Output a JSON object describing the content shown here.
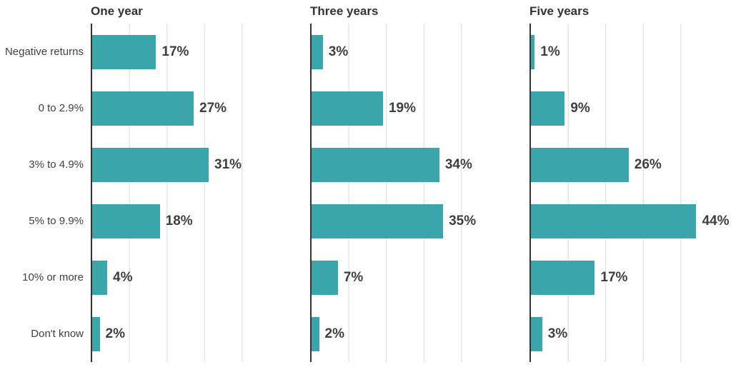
{
  "chart_data": {
    "type": "bar",
    "orientation": "horizontal",
    "title": "",
    "xlabel": "",
    "ylabel": "",
    "categories": [
      "Negative returns",
      "0 to 2.9%",
      "3% to 4.9%",
      "5% to 9.9%",
      "10% or more",
      "Don't know"
    ],
    "series": [
      {
        "name": "One year",
        "values": [
          17,
          27,
          31,
          18,
          4,
          2
        ],
        "labels": [
          "17%",
          "27%",
          "31%",
          "18%",
          "4%",
          "2%"
        ]
      },
      {
        "name": "Three years",
        "values": [
          3,
          19,
          34,
          35,
          7,
          2
        ],
        "labels": [
          "3%",
          "19%",
          "34%",
          "35%",
          "7%",
          "2%"
        ]
      },
      {
        "name": "Five years",
        "values": [
          1,
          9,
          26,
          44,
          17,
          3
        ],
        "labels": [
          "1%",
          "9%",
          "26%",
          "44%",
          "17%",
          "3%"
        ]
      }
    ],
    "xlim": [
      0,
      50
    ],
    "gridline_interval": 10,
    "grid": "vertical-only",
    "xtick_labels_shown": false,
    "legend": "none",
    "colors": {
      "bar": "#3AA6AC",
      "grid": "#D9D9D9",
      "axis": "#333333",
      "title_text": "#333333",
      "label_text": "#3F3F3F",
      "background": "#FFFFFF"
    }
  }
}
